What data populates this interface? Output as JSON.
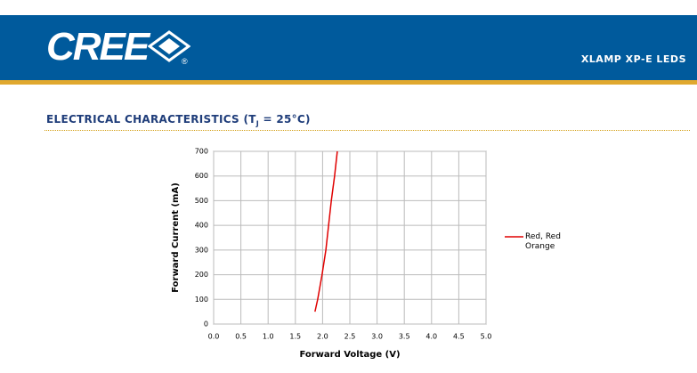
{
  "header": {
    "logo": "CREE",
    "registered": "®",
    "product": "XLAMP XP-E LEDS"
  },
  "section_title": {
    "prefix": "ELECTRICAL CHARACTERISTICS (T",
    "subscript": "J",
    "suffix": " = 25°C)"
  },
  "chart_data": {
    "type": "line",
    "x_label": "Forward Voltage (V)",
    "y_label": "Forward Current (mA)",
    "x": [
      1.86,
      1.91,
      1.99,
      2.06,
      2.11,
      2.16,
      2.22,
      2.27
    ],
    "series": [
      {
        "name": "Red, Red Orange",
        "color": "#e00000",
        "values": [
          50,
          100,
          200,
          300,
          400,
          500,
          600,
          700
        ]
      }
    ],
    "xlim": [
      0,
      5
    ],
    "ylim": [
      0,
      700
    ],
    "xticks": [
      {
        "value": 0,
        "label": "0.0"
      },
      0.5,
      {
        "value": 1,
        "label": "1.0"
      },
      1.5,
      {
        "value": 2,
        "label": "2.0"
      },
      2.5,
      {
        "value": 3,
        "label": "3.0"
      },
      3.5,
      {
        "value": 4,
        "label": "4.0"
      },
      4.5,
      {
        "value": 5,
        "label": "5.0"
      }
    ],
    "yticks": [
      0,
      100,
      200,
      300,
      400,
      500,
      600,
      700
    ],
    "grid": true,
    "legend": "right"
  }
}
